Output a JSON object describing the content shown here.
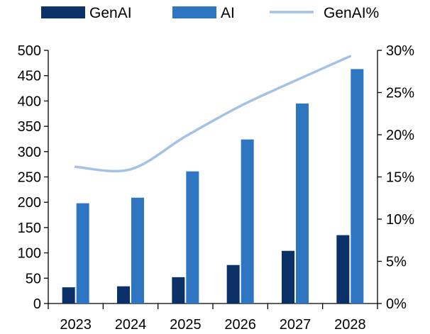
{
  "chart_data": {
    "type": "bar",
    "title": "",
    "xlabel": "",
    "ylabel": "",
    "categories": [
      "2023",
      "2024",
      "2025",
      "2026",
      "2027",
      "2028"
    ],
    "series": [
      {
        "name": "GenAI",
        "type": "bar",
        "axis": "left",
        "values": [
          32,
          34,
          52,
          76,
          104,
          135
        ]
      },
      {
        "name": "AI",
        "type": "bar",
        "axis": "left",
        "values": [
          198,
          209,
          261,
          324,
          395,
          463
        ]
      },
      {
        "name": "GenAI%",
        "type": "line",
        "axis": "right",
        "values": [
          16.2,
          15.9,
          19.8,
          23.4,
          26.4,
          29.3
        ]
      }
    ],
    "ylim": [
      0,
      500
    ],
    "y_ticks": [
      0,
      50,
      100,
      150,
      200,
      250,
      300,
      350,
      400,
      450,
      500
    ],
    "y2lim": [
      0,
      30
    ],
    "y2_ticks": [
      "0%",
      "5%",
      "10%",
      "15%",
      "20%",
      "25%",
      "30%"
    ],
    "legend_position": "top",
    "colors": {
      "GenAI": "#0b3168",
      "AI": "#2e75c2",
      "GenAI%": "#a4c2e6"
    }
  }
}
